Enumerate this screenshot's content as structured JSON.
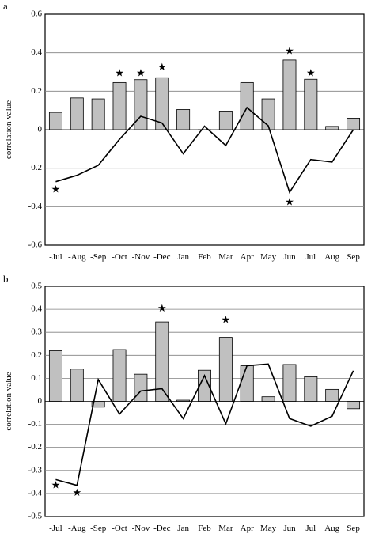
{
  "chart_data": [
    {
      "panel": "a",
      "type": "bar",
      "categories": [
        "-Jul",
        "-Aug",
        "-Sep",
        "-Oct",
        "-Nov",
        "-Dec",
        "Jan",
        "Feb",
        "Mar",
        "Apr",
        "May",
        "Jun",
        "Jul",
        "Aug",
        "Sep"
      ],
      "ylabel": "correlation value",
      "ylim": [
        -0.6,
        0.6
      ],
      "ytick_step": 0.2,
      "yticks": [
        "-0.6",
        "-0.4",
        "-0.2",
        "0",
        "0.2",
        "0.4",
        "0.6"
      ],
      "grid": true,
      "series": [
        {
          "type": "bar",
          "values": [
            0.09,
            0.165,
            0.16,
            0.245,
            0.26,
            0.27,
            0.105,
            0.0,
            0.097,
            0.245,
            0.16,
            0.362,
            0.262,
            0.017,
            0.06
          ]
        },
        {
          "type": "line",
          "values": [
            -0.27,
            -0.237,
            -0.185,
            -0.05,
            0.07,
            0.035,
            -0.125,
            0.018,
            -0.082,
            0.115,
            0.02,
            -0.325,
            -0.155,
            -0.168,
            0.0
          ]
        }
      ],
      "significance_markers": [
        {
          "category": "-Jul",
          "y": -0.315,
          "symbol": "★"
        },
        {
          "category": "-Oct",
          "y": 0.29,
          "symbol": "★"
        },
        {
          "category": "-Nov",
          "y": 0.29,
          "symbol": "★"
        },
        {
          "category": "-Dec",
          "y": 0.32,
          "symbol": "★"
        },
        {
          "category": "Jun",
          "y": 0.405,
          "symbol": "★"
        },
        {
          "category": "Jul",
          "y": 0.29,
          "symbol": "★"
        },
        {
          "category": "Jun",
          "y": -0.38,
          "symbol": "★"
        }
      ]
    },
    {
      "panel": "b",
      "type": "bar",
      "categories": [
        "-Jul",
        "-Aug",
        "-Sep",
        "-Oct",
        "-Nov",
        "-Dec",
        "Jan",
        "Feb",
        "Mar",
        "Apr",
        "May",
        "Jun",
        "Jul",
        "Aug",
        "Sep"
      ],
      "ylabel": "correlation value",
      "ylim": [
        -0.5,
        0.5
      ],
      "ytick_step": 0.1,
      "yticks": [
        "-0.5",
        "-0.4",
        "-0.3",
        "-0.2",
        "-0.1",
        "0",
        "0.1",
        "0.2",
        "0.3",
        "0.4",
        "0.5"
      ],
      "grid": true,
      "series": [
        {
          "type": "bar",
          "values": [
            0.22,
            0.14,
            -0.025,
            0.225,
            0.118,
            0.345,
            0.005,
            0.135,
            0.278,
            0.155,
            0.02,
            0.16,
            0.107,
            0.052,
            -0.032
          ]
        },
        {
          "type": "line",
          "values": [
            -0.34,
            -0.365,
            0.095,
            -0.055,
            0.045,
            0.055,
            -0.075,
            0.112,
            -0.098,
            0.155,
            0.162,
            -0.075,
            -0.108,
            -0.065,
            0.133
          ]
        }
      ],
      "significance_markers": [
        {
          "category": "-Jul",
          "y": -0.367,
          "symbol": "★"
        },
        {
          "category": "-Aug",
          "y": -0.4,
          "symbol": "★"
        },
        {
          "category": "-Dec",
          "y": 0.4,
          "symbol": "★"
        },
        {
          "category": "Mar",
          "y": 0.35,
          "symbol": "★"
        }
      ]
    }
  ]
}
